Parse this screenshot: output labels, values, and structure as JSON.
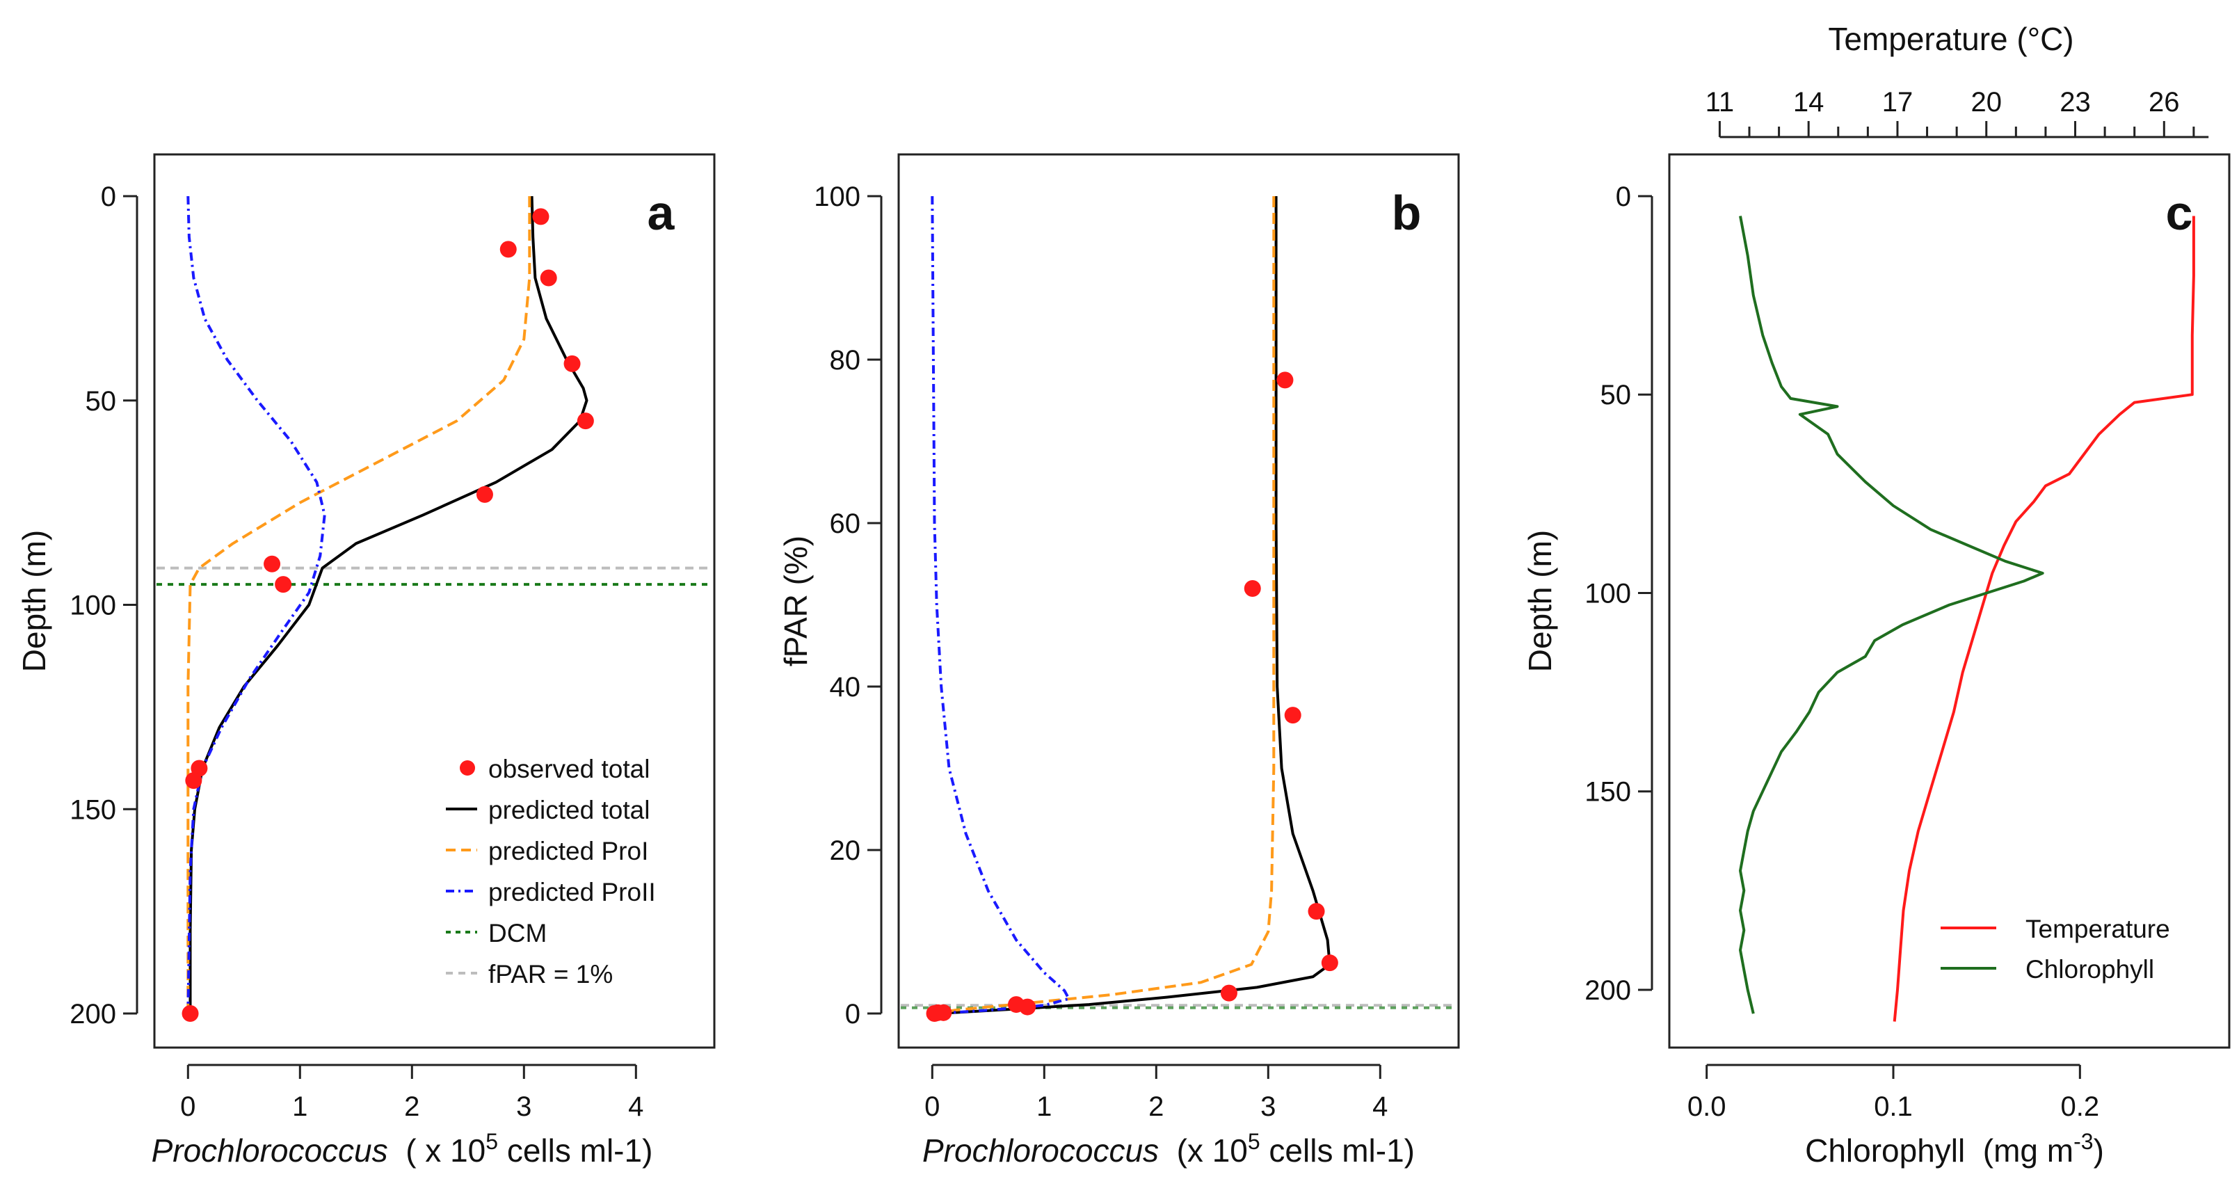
{
  "colors": {
    "observed": "#ff1a1a",
    "total": "#000000",
    "proI": "#ff9a1a",
    "proII": "#1a1aff",
    "dcm": "#1a7a1a",
    "fpar": "#bdbdbd",
    "temperature": "#ff1a1a",
    "chlorophyll": "#1f6e1f"
  },
  "chart_data": [
    {
      "panel": "a",
      "type": "line",
      "ylabel": "Depth  (m)",
      "xlabel_italic": "Prochlorococcus",
      "xlabel_rest": "  ( x 10",
      "xlabel_sup": "5",
      "xlabel_end": " cells ml-1)",
      "xlim": [
        -0.3,
        4.7
      ],
      "ylim": [
        0,
        200
      ],
      "y_inverted": true,
      "xticks": [
        0,
        1,
        2,
        3,
        4
      ],
      "xtick_labels": [
        "0",
        "1",
        "2",
        "3",
        "4"
      ],
      "yticks": [
        0,
        50,
        100,
        150,
        200
      ],
      "ytick_labels": [
        "0",
        "50",
        "100",
        "150",
        "200"
      ],
      "legend": {
        "position": "bottom-right",
        "entries": [
          "observed total",
          "predicted total",
          "predicted ProI",
          "predicted ProII",
          "DCM",
          "fPAR = 1%"
        ]
      },
      "hlines": {
        "dcm": 95,
        "fpar_1pct": 91
      },
      "observed": [
        [
          3.15,
          5
        ],
        [
          2.86,
          13
        ],
        [
          3.22,
          20
        ],
        [
          3.43,
          41
        ],
        [
          3.55,
          55
        ],
        [
          2.65,
          73
        ],
        [
          0.75,
          90
        ],
        [
          0.85,
          95
        ],
        [
          0.1,
          140
        ],
        [
          0.05,
          143
        ],
        [
          0.02,
          200
        ]
      ],
      "series": [
        {
          "name": "predicted total",
          "points": [
            [
              3.07,
              0
            ],
            [
              3.08,
              10
            ],
            [
              3.1,
              20
            ],
            [
              3.2,
              30
            ],
            [
              3.38,
              40
            ],
            [
              3.53,
              47
            ],
            [
              3.56,
              50
            ],
            [
              3.5,
              55
            ],
            [
              3.25,
              62
            ],
            [
              2.75,
              70
            ],
            [
              2.1,
              78
            ],
            [
              1.5,
              85
            ],
            [
              1.2,
              91
            ],
            [
              1.08,
              100
            ],
            [
              0.8,
              110
            ],
            [
              0.5,
              120
            ],
            [
              0.28,
              130
            ],
            [
              0.13,
              140
            ],
            [
              0.06,
              150
            ],
            [
              0.03,
              160
            ],
            [
              0.02,
              180
            ],
            [
              0.02,
              200
            ]
          ]
        },
        {
          "name": "predicted ProI",
          "points": [
            [
              3.05,
              0
            ],
            [
              3.05,
              20
            ],
            [
              3.0,
              35
            ],
            [
              2.82,
              45
            ],
            [
              2.4,
              55
            ],
            [
              1.7,
              65
            ],
            [
              1.0,
              75
            ],
            [
              0.4,
              85
            ],
            [
              0.1,
              91
            ],
            [
              0.02,
              95
            ],
            [
              0.0,
              120
            ],
            [
              0.0,
              200
            ]
          ]
        },
        {
          "name": "predicted ProII",
          "points": [
            [
              0.0,
              0
            ],
            [
              0.01,
              10
            ],
            [
              0.05,
              20
            ],
            [
              0.15,
              30
            ],
            [
              0.35,
              40
            ],
            [
              0.62,
              50
            ],
            [
              0.92,
              60
            ],
            [
              1.15,
              70
            ],
            [
              1.22,
              78
            ],
            [
              1.18,
              88
            ],
            [
              1.08,
              97
            ],
            [
              0.85,
              106
            ],
            [
              0.55,
              118
            ],
            [
              0.3,
              130
            ],
            [
              0.13,
              140
            ],
            [
              0.05,
              150
            ],
            [
              0.02,
              165
            ],
            [
              0.0,
              200
            ]
          ]
        }
      ]
    },
    {
      "panel": "b",
      "type": "line",
      "ylabel": "fPAR (%)",
      "xlabel_italic": "Prochlorococcus",
      "xlabel_rest": "  (x 10",
      "xlabel_sup": "5",
      "xlabel_end": " cells ml-1)",
      "xlim": [
        -0.3,
        4.7
      ],
      "ylim": [
        0,
        100
      ],
      "y_inverted": false,
      "xticks": [
        0,
        1,
        2,
        3,
        4
      ],
      "xtick_labels": [
        "0",
        "1",
        "2",
        "3",
        "4"
      ],
      "yticks": [
        0,
        20,
        40,
        60,
        80,
        100
      ],
      "ytick_labels": [
        "0",
        "20",
        "40",
        "60",
        "80",
        "100"
      ],
      "hlines": {
        "dcm": 0.7,
        "fpar_1pct": 1
      },
      "observed": [
        [
          3.15,
          77.5
        ],
        [
          2.86,
          52
        ],
        [
          3.22,
          36.5
        ],
        [
          3.43,
          12.5
        ],
        [
          3.55,
          6.2
        ],
        [
          2.65,
          2.5
        ],
        [
          0.75,
          1.1
        ],
        [
          0.85,
          0.8
        ],
        [
          0.1,
          0.1
        ],
        [
          0.05,
          0.1
        ],
        [
          0.02,
          0.0
        ]
      ],
      "series": [
        {
          "name": "predicted total",
          "points": [
            [
              3.07,
              100
            ],
            [
              3.07,
              80
            ],
            [
              3.07,
              60
            ],
            [
              3.08,
              40
            ],
            [
              3.12,
              30
            ],
            [
              3.22,
              22
            ],
            [
              3.4,
              15
            ],
            [
              3.53,
              9
            ],
            [
              3.55,
              6
            ],
            [
              3.4,
              4.5
            ],
            [
              2.9,
              3.2
            ],
            [
              2.1,
              2.0
            ],
            [
              1.4,
              1.1
            ],
            [
              0.8,
              0.6
            ],
            [
              0.3,
              0.2
            ],
            [
              0.05,
              0.0
            ]
          ]
        },
        {
          "name": "predicted ProI",
          "points": [
            [
              3.05,
              100
            ],
            [
              3.05,
              60
            ],
            [
              3.05,
              30
            ],
            [
              3.03,
              15
            ],
            [
              3.0,
              10
            ],
            [
              2.85,
              6
            ],
            [
              2.4,
              3.8
            ],
            [
              1.6,
              2.3
            ],
            [
              0.8,
              1.2
            ],
            [
              0.2,
              0.4
            ],
            [
              0.0,
              0.0
            ]
          ]
        },
        {
          "name": "predicted ProII",
          "points": [
            [
              0.0,
              100
            ],
            [
              0.01,
              80
            ],
            [
              0.02,
              60
            ],
            [
              0.04,
              50
            ],
            [
              0.08,
              40
            ],
            [
              0.15,
              30
            ],
            [
              0.3,
              22
            ],
            [
              0.5,
              15
            ],
            [
              0.75,
              9
            ],
            [
              1.0,
              5
            ],
            [
              1.18,
              2.8
            ],
            [
              1.22,
              1.8
            ],
            [
              1.0,
              1.0
            ],
            [
              0.5,
              0.4
            ],
            [
              0.15,
              0.1
            ],
            [
              0.0,
              0.0
            ]
          ]
        }
      ]
    },
    {
      "panel": "c",
      "type": "line",
      "ylabel": "Depth  (m)",
      "xlabel": "Chlorophyll  (mg m",
      "xlabel_sup": "-3",
      "xlabel_end": ")",
      "top_xlabel": "Temperature  (°C)",
      "xlim": [
        -0.02,
        0.28
      ],
      "top_xlim": [
        9.3,
        28.2
      ],
      "ylim": [
        0,
        210
      ],
      "y_inverted": true,
      "xticks": [
        0.0,
        0.1,
        0.2
      ],
      "xtick_labels": [
        "0.0",
        "0.1",
        "0.2"
      ],
      "top_xticks": [
        11,
        14,
        17,
        20,
        23,
        26
      ],
      "top_xtick_labels": [
        "11",
        "14",
        "17",
        "20",
        "23",
        "26"
      ],
      "yticks": [
        0,
        50,
        100,
        150,
        200
      ],
      "ytick_labels": [
        "0",
        "50",
        "100",
        "150",
        "200"
      ],
      "legend": {
        "position": "bottom-right",
        "entries": [
          "Temperature",
          "Chlorophyll"
        ]
      },
      "series": [
        {
          "name": "Temperature",
          "units": "°C",
          "points": [
            [
              27.0,
              5
            ],
            [
              27.0,
              20
            ],
            [
              26.95,
              35
            ],
            [
              26.95,
              50
            ],
            [
              25.0,
              52
            ],
            [
              24.5,
              55
            ],
            [
              23.8,
              60
            ],
            [
              23.2,
              66
            ],
            [
              22.8,
              70
            ],
            [
              22.0,
              73
            ],
            [
              21.6,
              77
            ],
            [
              21.0,
              82
            ],
            [
              20.6,
              88
            ],
            [
              20.2,
              95
            ],
            [
              20.0,
              100
            ],
            [
              19.6,
              110
            ],
            [
              19.2,
              120
            ],
            [
              18.9,
              130
            ],
            [
              18.5,
              140
            ],
            [
              18.1,
              150
            ],
            [
              17.7,
              160
            ],
            [
              17.4,
              170
            ],
            [
              17.2,
              180
            ],
            [
              17.1,
              190
            ],
            [
              17.0,
              200
            ],
            [
              16.9,
              208
            ]
          ]
        },
        {
          "name": "Chlorophyll",
          "units": "mg m-3",
          "points": [
            [
              0.018,
              5
            ],
            [
              0.022,
              15
            ],
            [
              0.025,
              25
            ],
            [
              0.03,
              35
            ],
            [
              0.035,
              42
            ],
            [
              0.04,
              48
            ],
            [
              0.045,
              51
            ],
            [
              0.07,
              53
            ],
            [
              0.05,
              55
            ],
            [
              0.065,
              60
            ],
            [
              0.07,
              65
            ],
            [
              0.085,
              72
            ],
            [
              0.1,
              78
            ],
            [
              0.12,
              84
            ],
            [
              0.14,
              88
            ],
            [
              0.16,
              92
            ],
            [
              0.18,
              95
            ],
            [
              0.17,
              97
            ],
            [
              0.15,
              100
            ],
            [
              0.13,
              103
            ],
            [
              0.105,
              108
            ],
            [
              0.09,
              112
            ],
            [
              0.085,
              116
            ],
            [
              0.07,
              120
            ],
            [
              0.06,
              125
            ],
            [
              0.055,
              130
            ],
            [
              0.048,
              135
            ],
            [
              0.04,
              140
            ],
            [
              0.035,
              145
            ],
            [
              0.03,
              150
            ],
            [
              0.025,
              155
            ],
            [
              0.022,
              160
            ],
            [
              0.02,
              165
            ],
            [
              0.018,
              170
            ],
            [
              0.02,
              175
            ],
            [
              0.018,
              180
            ],
            [
              0.02,
              185
            ],
            [
              0.018,
              190
            ],
            [
              0.02,
              195
            ],
            [
              0.022,
              200
            ],
            [
              0.025,
              206
            ]
          ]
        }
      ]
    }
  ]
}
